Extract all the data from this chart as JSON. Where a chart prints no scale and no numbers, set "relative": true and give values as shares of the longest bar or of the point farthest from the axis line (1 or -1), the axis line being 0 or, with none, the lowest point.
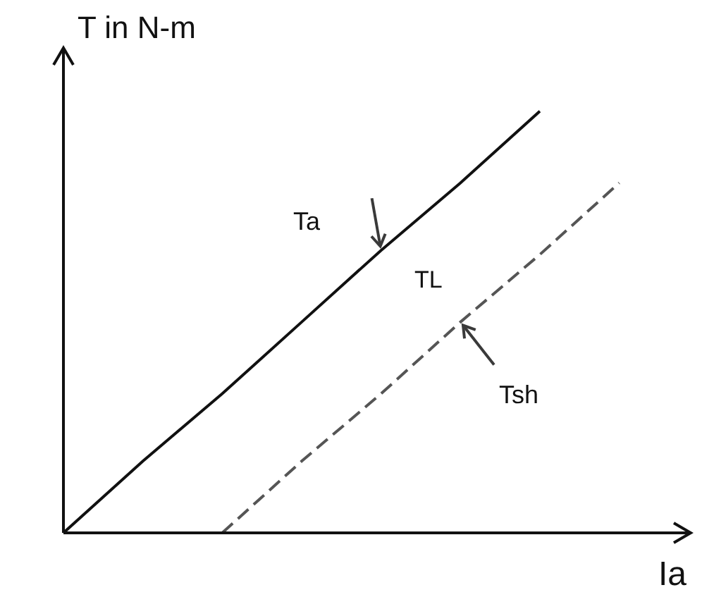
{
  "chart_data": {
    "type": "line",
    "relative": true,
    "xlabel": "Ia",
    "ylabel": "T in N-m",
    "categories": [
      null,
      null,
      null,
      null,
      null,
      null,
      null,
      null
    ],
    "series": [
      {
        "name": "Ta",
        "color": "#111111",
        "line_style": "solid",
        "values": [
          0,
          0.17,
          0.33,
          0.5,
          0.67,
          0.83,
          1,
          null
        ]
      },
      {
        "name": "Tsh",
        "color": "#555555",
        "line_style": "dashed",
        "values": [
          null,
          null,
          0,
          0.17,
          0.33,
          0.5,
          0.66,
          0.83
        ]
      }
    ],
    "annotations": [
      "TL"
    ],
    "legend": false,
    "marker": "none"
  }
}
